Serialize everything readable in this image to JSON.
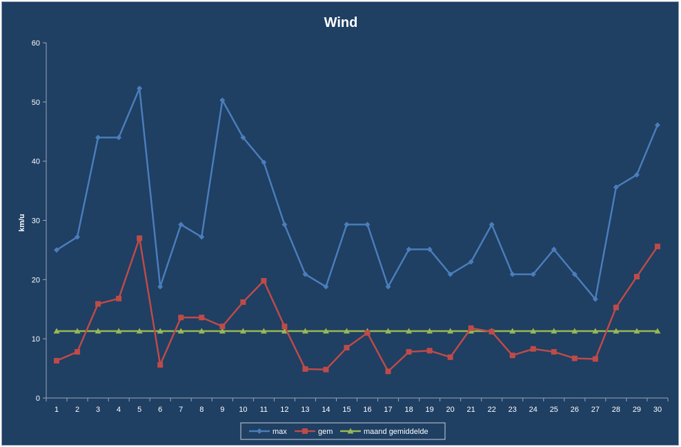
{
  "chart_data": {
    "type": "line",
    "title": "Wind",
    "xlabel": "",
    "ylabel": "km/u",
    "ylim": [
      0,
      60
    ],
    "yticks": [
      0,
      10,
      20,
      30,
      40,
      50,
      60
    ],
    "grid": false,
    "legend_position": "bottom",
    "x": [
      1,
      2,
      3,
      4,
      5,
      6,
      7,
      8,
      9,
      10,
      11,
      12,
      13,
      14,
      15,
      16,
      17,
      18,
      19,
      20,
      21,
      22,
      23,
      24,
      25,
      26,
      27,
      28,
      29,
      30
    ],
    "series": [
      {
        "name": "max",
        "color": "#4a7ebb",
        "marker": "diamond",
        "values": [
          25.0,
          27.2,
          44.0,
          44.0,
          52.3,
          18.8,
          29.3,
          27.2,
          50.3,
          44.0,
          39.8,
          29.3,
          20.9,
          18.8,
          29.3,
          29.3,
          18.8,
          25.1,
          25.1,
          20.9,
          23.0,
          29.3,
          20.9,
          20.9,
          25.1,
          20.9,
          16.7,
          35.6,
          37.7,
          46.1
        ]
      },
      {
        "name": "gem",
        "color": "#be4b48",
        "marker": "square",
        "values": [
          6.3,
          7.8,
          15.9,
          16.8,
          27.0,
          5.6,
          13.6,
          13.6,
          12.1,
          16.2,
          19.8,
          12.1,
          4.9,
          4.8,
          8.5,
          11.0,
          4.5,
          7.8,
          8.0,
          6.9,
          11.8,
          11.2,
          7.2,
          8.3,
          7.8,
          6.7,
          6.6,
          15.3,
          20.5,
          25.6
        ]
      },
      {
        "name": "maand gemiddelde",
        "color": "#98b954",
        "marker": "triangle",
        "values": [
          11.3,
          11.3,
          11.3,
          11.3,
          11.3,
          11.3,
          11.3,
          11.3,
          11.3,
          11.3,
          11.3,
          11.3,
          11.3,
          11.3,
          11.3,
          11.3,
          11.3,
          11.3,
          11.3,
          11.3,
          11.3,
          11.3,
          11.3,
          11.3,
          11.3,
          11.3,
          11.3,
          11.3,
          11.3,
          11.3
        ]
      }
    ]
  }
}
